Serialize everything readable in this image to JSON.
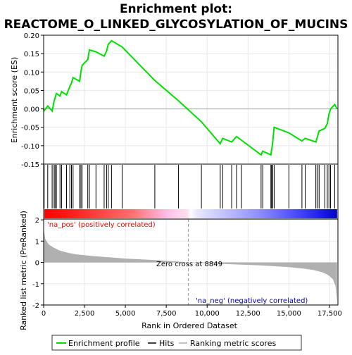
{
  "title_line1": "Enrichment plot:",
  "title_line2": "REACTOME_O_LINKED_GLYCOSYLATION_OF_MUCINS",
  "top_ylabel": "Enrichment score (ES)",
  "bottom_ylabel": "Ranked list metric (PreRanked)",
  "xlabel": "Rank in Ordered Dataset",
  "pos_label": "'na_pos' (positively correlated)",
  "neg_label": "'na_neg' (negatively correlated)",
  "zero_cross_label": "Zero cross at 8849",
  "legend": {
    "enrichment": "Enrichment profile",
    "hits": "Hits",
    "metric": "Ranking metric scores"
  },
  "colors": {
    "enrichment_line": "#00e000",
    "hits": "#000000",
    "metric_fill": "#b0b0b0",
    "pos_text": "#ff0000",
    "neg_text": "#0000cc",
    "grid": "#e8e8e8"
  },
  "chart_data": {
    "type": "line",
    "x_range": [
      0,
      18000
    ],
    "x_ticks": [
      "0",
      "2,500",
      "5,000",
      "7,500",
      "10,000",
      "12,500",
      "15,000",
      "17,500"
    ],
    "es_ylim": [
      -0.15,
      0.2
    ],
    "es_ticks": [
      "0.20",
      "0.15",
      "0.10",
      "0.05",
      "0.00",
      "-0.05",
      "-0.10",
      "-0.15"
    ],
    "metric_ylim": [
      -2,
      2.5
    ],
    "metric_ticks": [
      "2",
      "1",
      "0",
      "-1",
      "-2"
    ],
    "zero_cross": 8849,
    "n_genes": 17950,
    "hits": [
      30,
      250,
      520,
      640,
      700,
      780,
      1000,
      1100,
      1400,
      1600,
      1700,
      1800,
      2200,
      2280,
      2350,
      2700,
      2800,
      3200,
      3700,
      3850,
      3950,
      4150,
      4800,
      6800,
      8250,
      9650,
      10800,
      10950,
      11500,
      11800,
      12100,
      13300,
      13400,
      13900,
      13950,
      14000,
      14100,
      15000,
      15800,
      16000,
      16650,
      16750,
      16850,
      17200,
      17350,
      17450,
      17550,
      17800
    ],
    "enrichment_profile": {
      "x": [
        0,
        30,
        250,
        520,
        640,
        700,
        780,
        1000,
        1100,
        1400,
        1600,
        1700,
        1800,
        2200,
        2280,
        2350,
        2700,
        2800,
        3200,
        3700,
        3850,
        3950,
        4150,
        4800,
        6800,
        8250,
        9650,
        10800,
        10950,
        11500,
        11800,
        12100,
        13300,
        13400,
        13900,
        13950,
        14000,
        14100,
        15000,
        15800,
        16000,
        16650,
        16750,
        16850,
        17200,
        17350,
        17450,
        17550,
        17800,
        17950
      ],
      "es": [
        0.0,
        -0.005,
        0.008,
        -0.006,
        0.022,
        0.03,
        0.042,
        0.035,
        0.047,
        0.038,
        0.061,
        0.07,
        0.085,
        0.075,
        0.1,
        0.118,
        0.134,
        0.16,
        0.155,
        0.143,
        0.157,
        0.175,
        0.185,
        0.168,
        0.077,
        0.022,
        -0.035,
        -0.095,
        -0.08,
        -0.09,
        -0.075,
        -0.085,
        -0.125,
        -0.115,
        -0.125,
        -0.11,
        -0.095,
        -0.05,
        -0.065,
        -0.087,
        -0.08,
        -0.09,
        -0.075,
        -0.06,
        -0.053,
        -0.04,
        -0.015,
        0.0,
        0.012,
        0.0
      ]
    },
    "ranking_metric": {
      "x": [
        0,
        100,
        300,
        600,
        1000,
        1500,
        2000,
        3000,
        4000,
        5000,
        6000,
        7000,
        8000,
        8849,
        10000,
        11000,
        12000,
        13000,
        14000,
        15000,
        15500,
        16000,
        16500,
        17000,
        17300,
        17500,
        17700,
        17850,
        17950
      ],
      "values": [
        1.6,
        1.1,
        0.85,
        0.7,
        0.55,
        0.45,
        0.38,
        0.3,
        0.24,
        0.18,
        0.14,
        0.1,
        0.05,
        0.0,
        -0.04,
        -0.07,
        -0.1,
        -0.13,
        -0.17,
        -0.22,
        -0.26,
        -0.3,
        -0.36,
        -0.45,
        -0.55,
        -0.65,
        -0.8,
        -1.1,
        -1.85
      ]
    }
  }
}
